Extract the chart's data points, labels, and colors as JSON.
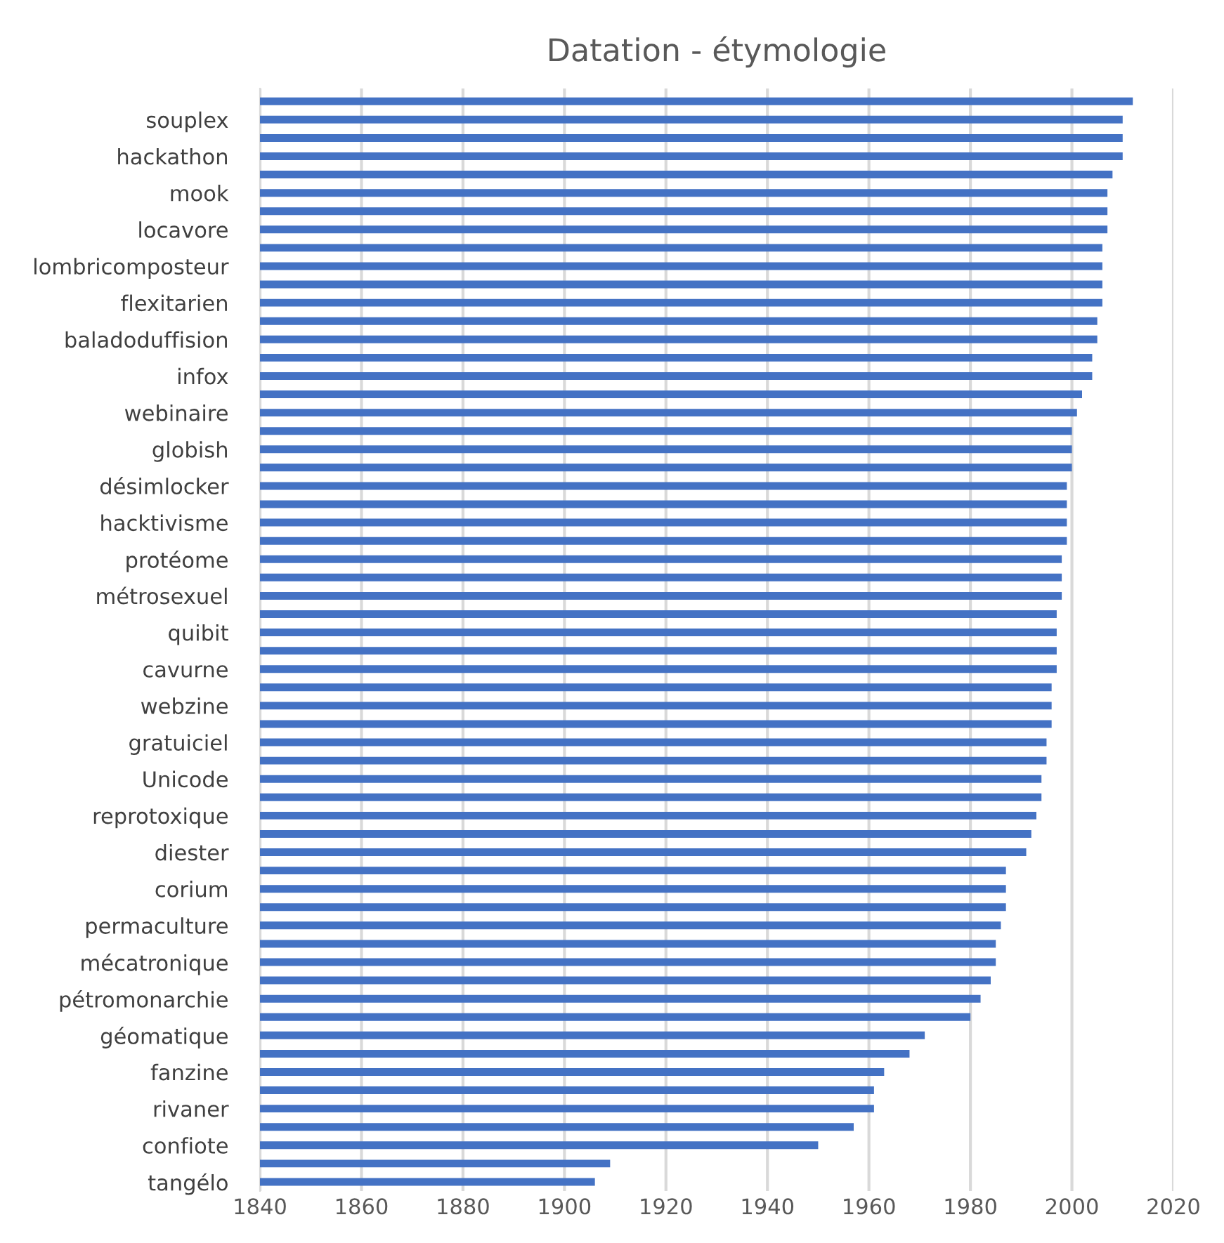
{
  "chart_data": {
    "type": "bar",
    "orientation": "horizontal",
    "title": "Datation - étymologie",
    "categories": [
      null,
      "souplex",
      null,
      "hackathon",
      null,
      "mook",
      null,
      "locavore",
      null,
      "lombricomposteur",
      null,
      "flexitarien",
      null,
      "baladoduffision",
      null,
      "infox",
      null,
      "webinaire",
      null,
      "globish",
      null,
      "désimlocker",
      null,
      "hacktivisme",
      null,
      "protéome",
      null,
      "métrosexuel",
      null,
      "quibit",
      null,
      "cavurne",
      null,
      "webzine",
      null,
      "gratuiciel",
      null,
      "Unicode",
      null,
      "reprotoxique",
      null,
      "diester",
      null,
      "corium",
      null,
      "permaculture",
      null,
      "mécatronique",
      null,
      "pétromonarchie",
      null,
      "géomatique",
      null,
      "fanzine",
      null,
      "rivaner",
      null,
      "confiote",
      null,
      "tangélo"
    ],
    "values": [
      2012,
      2010,
      2010,
      2010,
      2008,
      2007,
      2007,
      2007,
      2006,
      2006,
      2006,
      2006,
      2005,
      2005,
      2004,
      2004,
      2002,
      2001,
      2000,
      2000,
      2000,
      1999,
      1999,
      1999,
      1999,
      1998,
      1998,
      1998,
      1997,
      1997,
      1997,
      1997,
      1996,
      1996,
      1996,
      1995,
      1995,
      1994,
      1994,
      1993,
      1992,
      1991,
      1987,
      1987,
      1987,
      1986,
      1985,
      1985,
      1984,
      1982,
      1980,
      1971,
      1968,
      1963,
      1961,
      1961,
      1957,
      1950,
      1909,
      1906
    ],
    "color": "#4472c4",
    "xlim": [
      1840,
      2020
    ],
    "xticks": [
      1840,
      1860,
      1880,
      1900,
      1920,
      1940,
      1960,
      1980,
      2000,
      2020
    ],
    "grid": "x"
  }
}
